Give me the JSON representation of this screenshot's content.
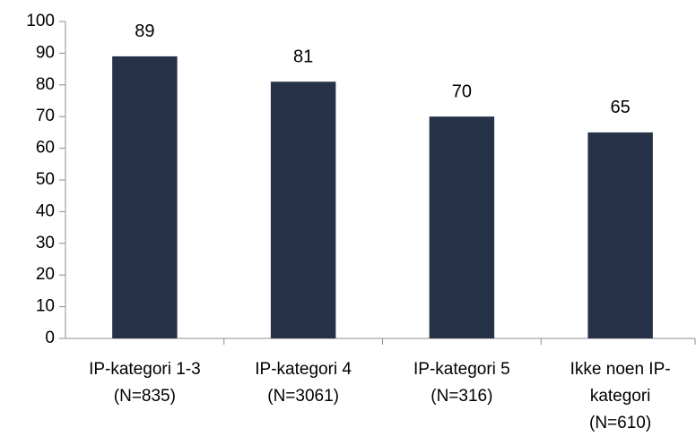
{
  "chart_data": {
    "type": "bar",
    "categories": [
      "IP-kategori 1-3\n(N=835)",
      "IP-kategori 4\n(N=3061)",
      "IP-kategori 5\n(N=316)",
      "Ikke noen IP-\nkategori\n(N=610)"
    ],
    "values": [
      89,
      81,
      70,
      65
    ],
    "color": "#263248",
    "ylim": [
      0,
      100
    ],
    "yticks": [
      0,
      10,
      20,
      30,
      40,
      50,
      60,
      70,
      80,
      90,
      100
    ],
    "grid": false
  }
}
